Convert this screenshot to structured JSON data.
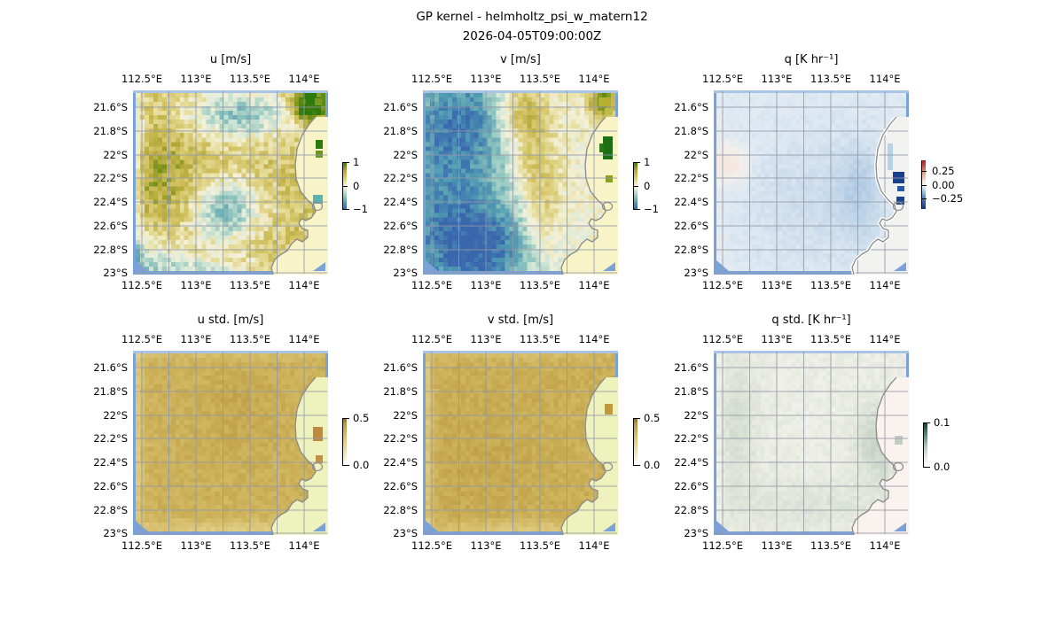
{
  "figure": {
    "title": "GP kernel - helmholtz_psi_w_matern12",
    "subtitle": "2026-04-05T09:00:00Z"
  },
  "chart_data": {
    "type": "heatmap",
    "title": "GP kernel - helmholtz_psi_w_matern12",
    "subtitle": "2026-04-05T09:00:00Z",
    "layout_hint": "2 rows x 3 columns of geographic pcolormesh maps (Exmouth / Ningaloo region, Western Australia), each with its own thin vertical colorbar; grid on at 0.25 deg lon / 0.2 deg lat",
    "x_ticks": [
      "112.5°E",
      "113°E",
      "113.5°E",
      "114°E"
    ],
    "y_ticks": [
      "21.6°S",
      "21.8°S",
      "22°S",
      "22.2°S",
      "22.4°S",
      "22.6°S",
      "22.8°S",
      "23°S"
    ],
    "x_range_deg_east": [
      112.42,
      114.22
    ],
    "y_range_deg_south": [
      21.45,
      23.02
    ],
    "cmaps": {
      "uv": [
        [
          0,
          "#3a66ae"
        ],
        [
          0.13,
          "#4f9ab2"
        ],
        [
          0.28,
          "#95c8c0"
        ],
        [
          0.42,
          "#dcead8"
        ],
        [
          0.5,
          "#f4f0d8"
        ],
        [
          0.58,
          "#e7dfa0"
        ],
        [
          0.7,
          "#d3c262"
        ],
        [
          0.82,
          "#b2a93a"
        ],
        [
          0.92,
          "#6f8f16"
        ],
        [
          1,
          "#2e7a10"
        ]
      ],
      "q": [
        [
          0,
          "#16377e"
        ],
        [
          0.18,
          "#3f6db0"
        ],
        [
          0.32,
          "#8fb4d8"
        ],
        [
          0.45,
          "#dde8f2"
        ],
        [
          0.5,
          "#f2f0ec"
        ],
        [
          0.58,
          "#f6e3da"
        ],
        [
          0.75,
          "#e29a80"
        ],
        [
          1,
          "#a81c28"
        ]
      ],
      "std": [
        [
          0,
          "#ffffff"
        ],
        [
          0.25,
          "#efe6bc"
        ],
        [
          0.5,
          "#e0cd84"
        ],
        [
          0.72,
          "#cdb25a"
        ],
        [
          0.88,
          "#b99a42"
        ],
        [
          1,
          "#8a6a22"
        ]
      ],
      "qstd": [
        [
          0,
          "#ffffff"
        ],
        [
          0.18,
          "#ecede4"
        ],
        [
          0.4,
          "#c4d2c4"
        ],
        [
          0.7,
          "#5f8f7e"
        ],
        [
          1,
          "#0f3a32"
        ]
      ]
    },
    "panels": [
      {
        "id": "u",
        "title": "u [m/s]",
        "colorbar": {
          "tick_labels": [
            "1",
            "0",
            "−1"
          ],
          "tick_values": [
            1,
            0,
            -1
          ],
          "vmin": -1,
          "vmax": 1,
          "tick_pos": [
            0,
            0.5,
            1
          ]
        },
        "field_summary": "Predominantly positive zonal velocity (khaki, ~0.2–0.5 m/s) over open ocean; negative (teal, ~−0.3 m/s) patches near 113.4°E 21.7°S and 113.3°E 22.5°S; strong positive (green, ~1 m/s) cells at the coast near 114°E 21.6°S; one negative coastal cell near 114.1°E 22.4°S; land masked pale yellow",
        "render": {
          "seed": 11,
          "vmin": -1,
          "vmax": 1,
          "base": 0.38,
          "noise": 0.2,
          "cmap": "uv",
          "land_color": "#f8f4c8",
          "coast_halo": false,
          "blobs": [
            {
              "x": 0.55,
              "y": 0.12,
              "sx": 0.2,
              "sy": 0.1,
              "a": -0.85
            },
            {
              "x": 0.47,
              "y": 0.66,
              "sx": 0.13,
              "sy": 0.13,
              "a": -0.9
            },
            {
              "x": 0.05,
              "y": 0.92,
              "sx": 0.18,
              "sy": 0.12,
              "a": -0.45
            },
            {
              "x": 0.3,
              "y": 1.0,
              "sx": 0.3,
              "sy": 0.06,
              "a": -0.45
            },
            {
              "x": 0.0,
              "y": 0.5,
              "sx": 0.03,
              "sy": 0.7,
              "a": -0.5
            },
            {
              "x": 0.12,
              "y": 0.5,
              "sx": 0.18,
              "sy": 0.2,
              "a": 0.28
            },
            {
              "x": 0.92,
              "y": 0.07,
              "sx": 0.06,
              "sy": 0.06,
              "a": 1.2
            }
          ],
          "patches": [
            {
              "x": 188,
              "y": 10,
              "w": 7,
              "h": 6,
              "c": "#5a8a10"
            },
            {
              "x": 196,
              "y": 16,
              "w": 9,
              "h": 7,
              "c": "#3c7c0c"
            },
            {
              "x": 205,
              "y": 9,
              "w": 8,
              "h": 8,
              "c": "#7a9a1e"
            },
            {
              "x": 206,
              "y": 56,
              "w": 8,
              "h": 10,
              "c": "#2f7a10"
            },
            {
              "x": 206,
              "y": 68,
              "w": 8,
              "h": 8,
              "c": "#6a9424"
            },
            {
              "x": 203,
              "y": 118,
              "w": 11,
              "h": 10,
              "c": "#5ab4b4"
            }
          ]
        }
      },
      {
        "id": "v",
        "title": "v [m/s]",
        "colorbar": {
          "tick_labels": [
            "1",
            "0",
            "−1"
          ],
          "tick_values": [
            1,
            0,
            -1
          ],
          "vmin": -1,
          "vmax": 1,
          "tick_pos": [
            0,
            0.5,
            1
          ]
        },
        "field_summary": "Negative meridional velocity (teal, ~−0.5 m/s) over the western half; positive (khaki, ~0.3 m/s) band running from 113.3°E in the north down the centre toward the coast; strong positive (dark green, ~1 m/s) coastal cells near 114.1°E 22–22.3°S; land masked pale yellow",
        "render": {
          "seed": 23,
          "vmin": -1,
          "vmax": 1,
          "base": 0.05,
          "noise": 0.15,
          "cmap": "uv",
          "land_color": "#f8f4c8",
          "coast_halo": false,
          "blobs": [
            {
              "x": 0.1,
              "y": 0.45,
              "sx": 0.3,
              "sy": 0.45,
              "a": -0.75
            },
            {
              "x": 0.3,
              "y": 0.9,
              "sx": 0.25,
              "sy": 0.2,
              "a": -0.7
            },
            {
              "x": 0.25,
              "y": 0.12,
              "sx": 0.2,
              "sy": 0.18,
              "a": -0.4
            },
            {
              "x": 0.5,
              "y": 0.1,
              "sx": 0.1,
              "sy": 0.12,
              "a": 0.65
            },
            {
              "x": 0.56,
              "y": 0.35,
              "sx": 0.09,
              "sy": 0.18,
              "a": 0.45
            },
            {
              "x": 0.62,
              "y": 0.7,
              "sx": 0.08,
              "sy": 0.2,
              "a": 0.4
            },
            {
              "x": 0.93,
              "y": 0.05,
              "sx": 0.05,
              "sy": 0.06,
              "a": 0.9
            }
          ],
          "patches": [
            {
              "x": 198,
              "y": 8,
              "w": 12,
              "h": 10,
              "c": "#b8b030"
            },
            {
              "x": 205,
              "y": 20,
              "w": 9,
              "h": 8,
              "c": "#c0bc48"
            },
            {
              "x": 203,
              "y": 52,
              "w": 11,
              "h": 26,
              "c": "#1e6e14"
            },
            {
              "x": 199,
              "y": 60,
              "w": 5,
              "h": 10,
              "c": "#2a7a1a"
            },
            {
              "x": 206,
              "y": 96,
              "w": 8,
              "h": 8,
              "c": "#8aa018"
            }
          ]
        }
      },
      {
        "id": "q",
        "title": "q [K hr⁻¹]",
        "colorbar": {
          "tick_labels": [
            "0.25",
            "0.00",
            "−0.25"
          ],
          "tick_values": [
            0.25,
            0,
            -0.25
          ],
          "vmin": -0.45,
          "vmax": 0.45,
          "tick_pos": [
            0.22,
            0.5,
            0.78
          ]
        },
        "field_summary": "Weak negative heating (pale blue, ~−0.05 K/hr) over most of the ocean; faint positive (pink) spot near 112.6°E 22.1°S; strong negative (dark blue, ~−0.3 K/hr) coastal cells near 114.1°E 22.2–22.45°S; land masked near-white",
        "render": {
          "seed": 37,
          "vmin": -0.45,
          "vmax": 0.45,
          "base": -0.04,
          "noise": 0.012,
          "cmap": "q",
          "land_color": "#f2f2f0",
          "coast_halo": true,
          "blobs": [
            {
              "x": 0.07,
              "y": 0.4,
              "sx": 0.06,
              "sy": 0.07,
              "a": 0.1
            },
            {
              "x": 0.5,
              "y": 0.6,
              "sx": 0.25,
              "sy": 0.25,
              "a": -0.03
            },
            {
              "x": 0.75,
              "y": 0.55,
              "sx": 0.08,
              "sy": 0.2,
              "a": -0.05
            },
            {
              "x": 0.0,
              "y": 0.5,
              "sx": 0.03,
              "sy": 0.7,
              "a": 0.02
            }
          ],
          "patches": [
            {
              "x": 196,
              "y": 60,
              "w": 6,
              "h": 30,
              "c": "#b9d2e8"
            },
            {
              "x": 202,
              "y": 92,
              "w": 13,
              "h": 13,
              "c": "#1a3f8f"
            },
            {
              "x": 207,
              "y": 108,
              "w": 8,
              "h": 6,
              "c": "#2a55a5"
            },
            {
              "x": 206,
              "y": 120,
              "w": 9,
              "h": 9,
              "c": "#1a3f8f"
            }
          ]
        }
      },
      {
        "id": "u_std",
        "title": "u std. [m/s]",
        "colorbar": {
          "tick_labels": [
            "0.5",
            "0.0"
          ],
          "tick_values": [
            0.5,
            0
          ],
          "vmin": 0,
          "vmax": 0.5,
          "tick_pos": [
            0,
            1
          ]
        },
        "field_summary": "Nearly uniform posterior std ≈0.35–0.4 m/s (tan) over ocean; slightly lighter along domain edges; slightly higher (orange-tan) cells at the coast near 114.1°E 22.2–22.4°S; land masked pale yellow-green",
        "render": {
          "seed": 51,
          "vmin": 0,
          "vmax": 0.5,
          "base": 0.36,
          "noise": 0.03,
          "cmap": "std",
          "land_color": "#eef2bd",
          "coast_halo": false,
          "blobs": [
            {
              "x": 0.0,
              "y": 0.5,
              "sx": 0.03,
              "sy": 0.7,
              "a": -0.1
            },
            {
              "x": 0.5,
              "y": 1.0,
              "sx": 0.5,
              "sy": 0.04,
              "a": -0.1
            },
            {
              "x": 0.5,
              "y": 0.0,
              "sx": 0.5,
              "sy": 0.03,
              "a": -0.05
            },
            {
              "x": 0.55,
              "y": 0.3,
              "sx": 0.15,
              "sy": 0.2,
              "a": 0.03
            },
            {
              "x": 0.96,
              "y": 0.45,
              "sx": 0.04,
              "sy": 0.1,
              "a": 0.1
            }
          ],
          "patches": [
            {
              "x": 203,
              "y": 86,
              "w": 11,
              "h": 16,
              "c": "#c08a3c"
            },
            {
              "x": 206,
              "y": 118,
              "w": 8,
              "h": 9,
              "c": "#c49045"
            }
          ]
        }
      },
      {
        "id": "v_std",
        "title": "v std. [m/s]",
        "colorbar": {
          "tick_labels": [
            "0.5",
            "0.0"
          ],
          "tick_values": [
            0.5,
            0
          ],
          "vmin": 0,
          "vmax": 0.5,
          "tick_pos": [
            0,
            1
          ]
        },
        "field_summary": "Nearly uniform posterior std ≈0.35–0.4 m/s (tan) over ocean, lighter at domain edges; land masked pale yellow-green",
        "render": {
          "seed": 67,
          "vmin": 0,
          "vmax": 0.5,
          "base": 0.37,
          "noise": 0.03,
          "cmap": "std",
          "land_color": "#eef2bd",
          "coast_halo": false,
          "blobs": [
            {
              "x": 0.0,
              "y": 0.5,
              "sx": 0.03,
              "sy": 0.7,
              "a": -0.1
            },
            {
              "x": 0.5,
              "y": 1.0,
              "sx": 0.5,
              "sy": 0.04,
              "a": -0.1
            },
            {
              "x": 0.5,
              "y": 0.0,
              "sx": 0.5,
              "sy": 0.03,
              "a": -0.05
            },
            {
              "x": 0.3,
              "y": 0.6,
              "sx": 0.2,
              "sy": 0.25,
              "a": 0.02
            },
            {
              "x": 0.96,
              "y": 0.35,
              "sx": 0.04,
              "sy": 0.08,
              "a": 0.07
            }
          ],
          "patches": [
            {
              "x": 205,
              "y": 60,
              "w": 9,
              "h": 12,
              "c": "#bd9a40"
            }
          ]
        }
      },
      {
        "id": "q_std",
        "title": "q std. [K hr⁻¹]",
        "colorbar": {
          "tick_labels": [
            "0.1",
            "0.0"
          ],
          "tick_values": [
            0.1,
            0
          ],
          "vmin": 0,
          "vmax": 0.1,
          "tick_pos": [
            0,
            1
          ]
        },
        "field_summary": "Very low posterior std ≈0.01–0.03 K/hr (pale grey-green) everywhere; slightly higher near the coast around 114°E 22.2–22.5°S; land masked very pale pink",
        "render": {
          "seed": 83,
          "vmin": 0,
          "vmax": 0.1,
          "base": 0.018,
          "noise": 0.004,
          "cmap": "qstd",
          "land_color": "#faf2ef",
          "coast_halo": false,
          "blobs": [
            {
              "x": 0.85,
              "y": 0.5,
              "sx": 0.08,
              "sy": 0.15,
              "a": 0.02
            },
            {
              "x": 0.1,
              "y": 0.4,
              "sx": 0.08,
              "sy": 0.3,
              "a": 0.012
            },
            {
              "x": 0.5,
              "y": 0.85,
              "sx": 0.3,
              "sy": 0.1,
              "a": 0.008
            },
            {
              "x": 0.0,
              "y": 0.5,
              "sx": 0.03,
              "sy": 0.7,
              "a": -0.008
            }
          ],
          "patches": [
            {
              "x": 204,
              "y": 96,
              "w": 9,
              "h": 10,
              "c": "#c2cfc0"
            }
          ]
        }
      }
    ],
    "map_colors": {
      "frame_sea_border": "#7ba2d8",
      "frame_sea_border_top": "#a9c4e6",
      "coastline": "#8a8a8a",
      "gridline": "#9298a8"
    }
  }
}
